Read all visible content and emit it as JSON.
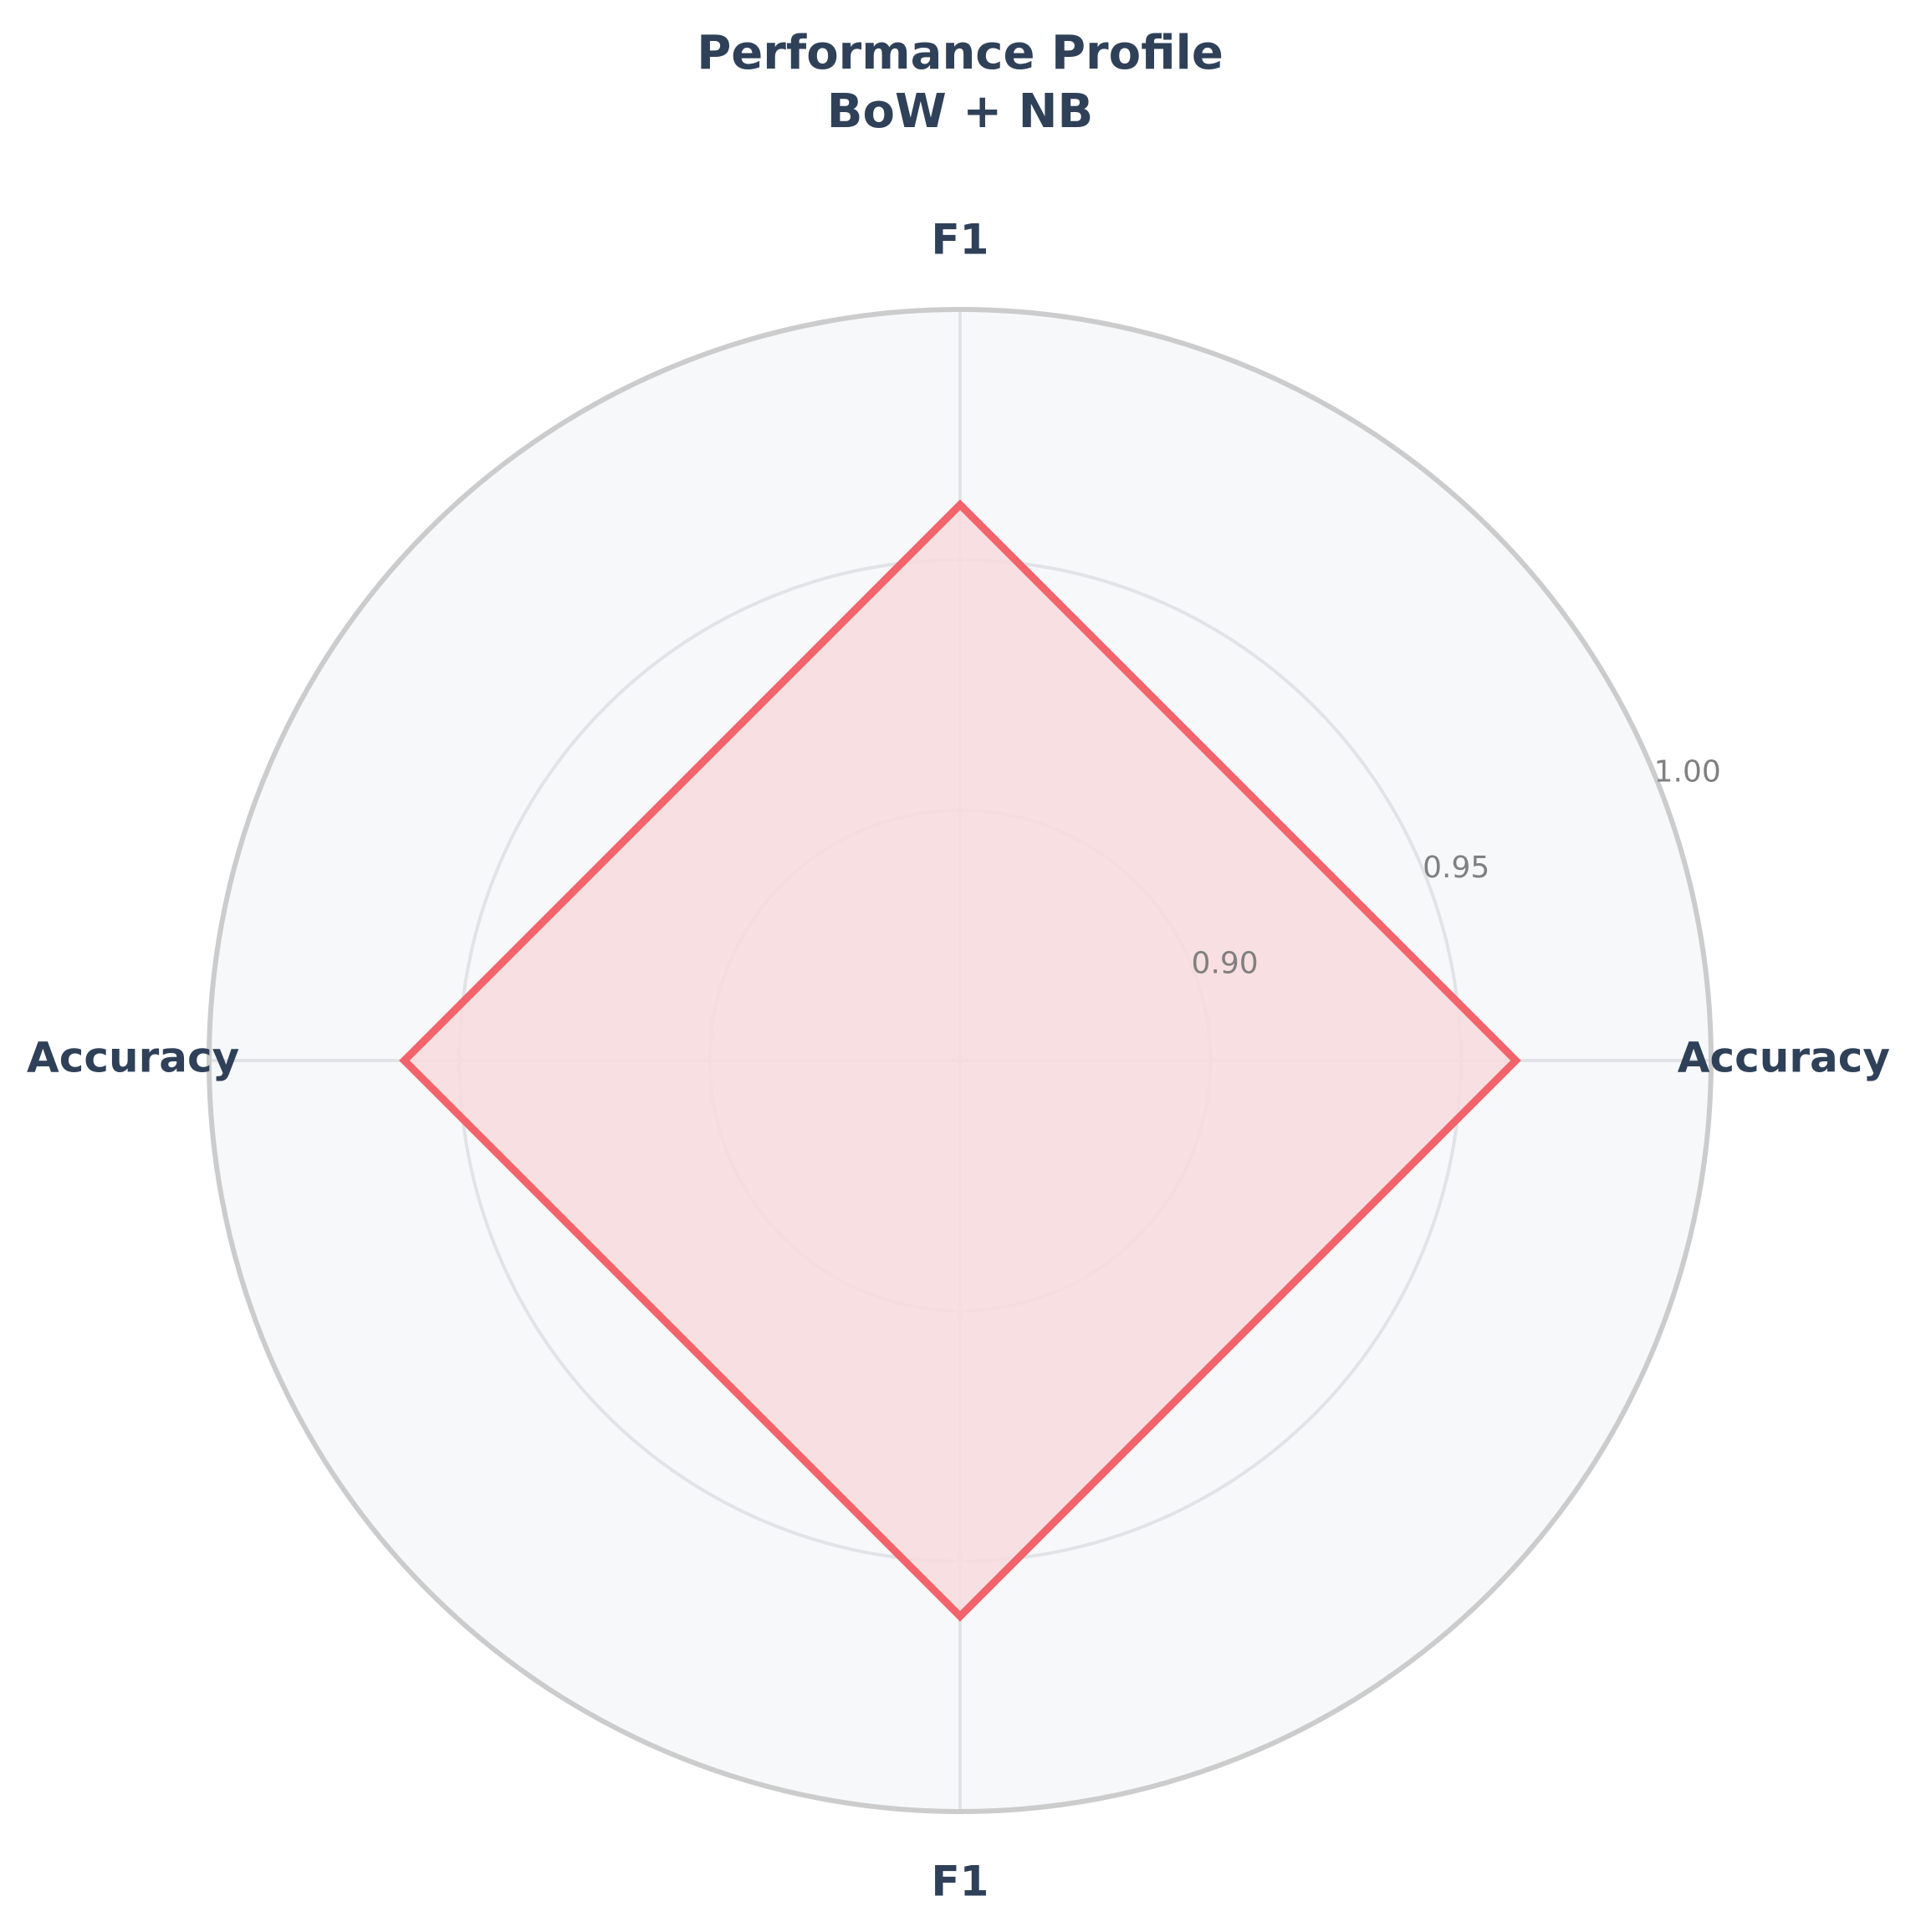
{
  "chart_data": {
    "type": "radar",
    "title_lines": [
      "Performance Profile",
      "BoW + NB"
    ],
    "axes": [
      "Accuracy",
      "F1",
      "Accuracy",
      "F1"
    ],
    "values": [
      0.961,
      0.961,
      0.961,
      0.961
    ],
    "r_range": [
      0.85,
      1.0
    ],
    "r_ticks": [
      0.9,
      0.95,
      1.0
    ],
    "r_tick_labels": [
      "0.90",
      "0.95",
      "1.00"
    ],
    "grid": true,
    "colors": {
      "series_line": "#f2636b",
      "series_fill": "#f7dbde",
      "plot_background": "#f7f8fa",
      "outer_ring": "#cccccc",
      "grid": "#e2e3e6",
      "axis_label_text": "#2f4158",
      "tick_label_text": "#808080"
    }
  }
}
